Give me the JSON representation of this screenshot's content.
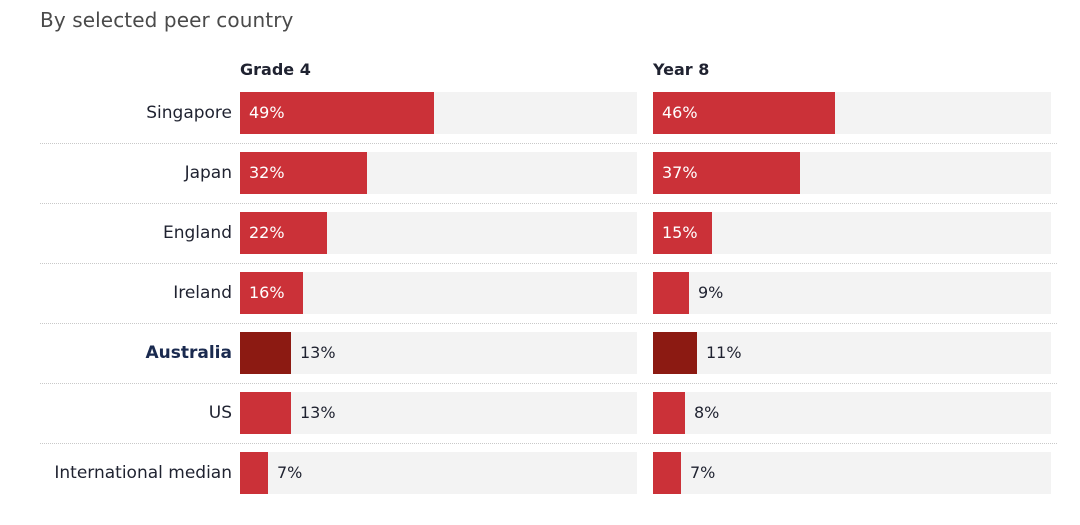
{
  "subtitle": "By selected peer country",
  "chart_data": {
    "type": "bar",
    "orientation": "horizontal",
    "title": "",
    "subtitle": "By selected peer country",
    "categories": [
      "Singapore",
      "Japan",
      "England",
      "Ireland",
      "Australia",
      "US",
      "International median"
    ],
    "highlight_category": "Australia",
    "series": [
      {
        "name": "Grade 4",
        "values": [
          49,
          32,
          22,
          16,
          13,
          13,
          7
        ],
        "labels": [
          "49%",
          "32%",
          "22%",
          "16%",
          "13%",
          "13%",
          "7%"
        ]
      },
      {
        "name": "Year 8",
        "values": [
          46,
          37,
          15,
          9,
          11,
          8,
          7
        ],
        "labels": [
          "46%",
          "37%",
          "15%",
          "9%",
          "11%",
          "8%",
          "7%"
        ]
      }
    ],
    "unit": "%",
    "colors": {
      "bar": "#cb3138",
      "highlight_bar": "#8c1a12",
      "track": "#f3f3f3"
    }
  }
}
